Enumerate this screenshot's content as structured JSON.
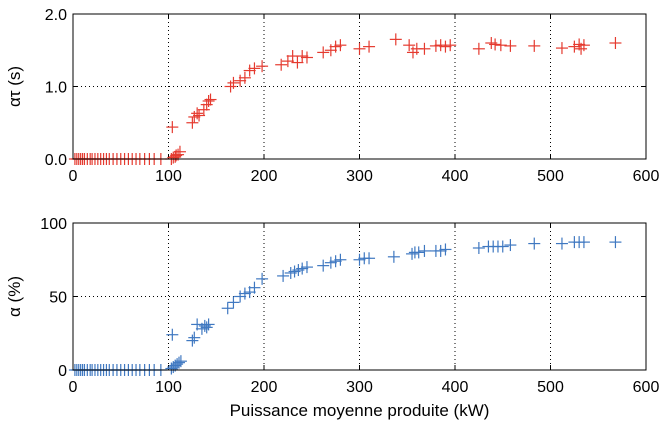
{
  "chart_data": [
    {
      "type": "scatter",
      "marker": "plus",
      "color": "#e53a2f",
      "xlabel": "",
      "ylabel": "ατ (s)",
      "xlim": [
        0,
        600
      ],
      "ylim": [
        0,
        2.0
      ],
      "xticks": [
        "0",
        "100",
        "200",
        "300",
        "400",
        "500",
        "600"
      ],
      "yticks": [
        "0.0",
        "1.0",
        "2.0"
      ],
      "grid": "dotted",
      "series": [
        {
          "points": [
            [
              2,
              0
            ],
            [
              4,
              0
            ],
            [
              6,
              0
            ],
            [
              8,
              0
            ],
            [
              10,
              0
            ],
            [
              12,
              0
            ],
            [
              15,
              0
            ],
            [
              18,
              0
            ],
            [
              20,
              0
            ],
            [
              23,
              0
            ],
            [
              26,
              0
            ],
            [
              29,
              0
            ],
            [
              32,
              0
            ],
            [
              35,
              0
            ],
            [
              38,
              0
            ],
            [
              42,
              0
            ],
            [
              46,
              0
            ],
            [
              50,
              0
            ],
            [
              54,
              0
            ],
            [
              58,
              0
            ],
            [
              62,
              0
            ],
            [
              66,
              0
            ],
            [
              70,
              0
            ],
            [
              75,
              0
            ],
            [
              80,
              0
            ],
            [
              85,
              0
            ],
            [
              92,
              0
            ],
            [
              103,
              0
            ],
            [
              105,
              0.02
            ],
            [
              107,
              0.03
            ],
            [
              108,
              0.05
            ],
            [
              110,
              0.06
            ],
            [
              112,
              0.1
            ],
            [
              104,
              0.44
            ],
            [
              125,
              0.5
            ],
            [
              127,
              0.58
            ],
            [
              130,
              0.63
            ],
            [
              132,
              0.6
            ],
            [
              137,
              0.68
            ],
            [
              140,
              0.75
            ],
            [
              142,
              0.8
            ],
            [
              144,
              0.82
            ],
            [
              165,
              1.0
            ],
            [
              168,
              1.05
            ],
            [
              175,
              1.08
            ],
            [
              180,
              1.12
            ],
            [
              185,
              1.22
            ],
            [
              190,
              1.25
            ],
            [
              198,
              1.28
            ],
            [
              218,
              1.3
            ],
            [
              225,
              1.35
            ],
            [
              230,
              1.42
            ],
            [
              235,
              1.33
            ],
            [
              240,
              1.42
            ],
            [
              245,
              1.4
            ],
            [
              262,
              1.47
            ],
            [
              270,
              1.5
            ],
            [
              275,
              1.55
            ],
            [
              280,
              1.57
            ],
            [
              300,
              1.52
            ],
            [
              310,
              1.55
            ],
            [
              338,
              1.65
            ],
            [
              352,
              1.57
            ],
            [
              356,
              1.47
            ],
            [
              360,
              1.52
            ],
            [
              368,
              1.52
            ],
            [
              380,
              1.56
            ],
            [
              385,
              1.57
            ],
            [
              390,
              1.55
            ],
            [
              395,
              1.57
            ],
            [
              425,
              1.52
            ],
            [
              438,
              1.6
            ],
            [
              442,
              1.58
            ],
            [
              448,
              1.57
            ],
            [
              458,
              1.56
            ],
            [
              483,
              1.56
            ],
            [
              512,
              1.53
            ],
            [
              525,
              1.55
            ],
            [
              530,
              1.58
            ],
            [
              532,
              1.52
            ],
            [
              535,
              1.57
            ],
            [
              568,
              1.6
            ]
          ]
        }
      ]
    },
    {
      "type": "scatter",
      "marker": "plus",
      "color": "#3f78c1",
      "xlabel": "Puissance moyenne produite (kW)",
      "ylabel": "α (%)",
      "xlim": [
        0,
        600
      ],
      "ylim": [
        0,
        100
      ],
      "xticks": [
        "0",
        "100",
        "200",
        "300",
        "400",
        "500",
        "600"
      ],
      "yticks": [
        "0",
        "50",
        "100"
      ],
      "grid": "dotted",
      "series": [
        {
          "points": [
            [
              2,
              0
            ],
            [
              4,
              0
            ],
            [
              6,
              0
            ],
            [
              8,
              0
            ],
            [
              10,
              0
            ],
            [
              12,
              0
            ],
            [
              15,
              0
            ],
            [
              18,
              0
            ],
            [
              20,
              0
            ],
            [
              23,
              0
            ],
            [
              26,
              0
            ],
            [
              29,
              0
            ],
            [
              32,
              0
            ],
            [
              35,
              0
            ],
            [
              38,
              0
            ],
            [
              42,
              0
            ],
            [
              46,
              0
            ],
            [
              50,
              0
            ],
            [
              54,
              0
            ],
            [
              58,
              0
            ],
            [
              62,
              0
            ],
            [
              66,
              0
            ],
            [
              70,
              0
            ],
            [
              75,
              0
            ],
            [
              80,
              0
            ],
            [
              85,
              0
            ],
            [
              92,
              0
            ],
            [
              103,
              1
            ],
            [
              105,
              2
            ],
            [
              107,
              3
            ],
            [
              109,
              4
            ],
            [
              111,
              5
            ],
            [
              113,
              6
            ],
            [
              104,
              24
            ],
            [
              125,
              20
            ],
            [
              127,
              22
            ],
            [
              130,
              31
            ],
            [
              135,
              28
            ],
            [
              138,
              30
            ],
            [
              140,
              29
            ],
            [
              142,
              31
            ],
            [
              162,
              42
            ],
            [
              168,
              46
            ],
            [
              175,
              50
            ],
            [
              180,
              52
            ],
            [
              185,
              53
            ],
            [
              190,
              56
            ],
            [
              198,
              62
            ],
            [
              220,
              64
            ],
            [
              228,
              66
            ],
            [
              232,
              67
            ],
            [
              236,
              68
            ],
            [
              240,
              69
            ],
            [
              245,
              70
            ],
            [
              262,
              71
            ],
            [
              270,
              73
            ],
            [
              275,
              74
            ],
            [
              280,
              75
            ],
            [
              300,
              75
            ],
            [
              305,
              76
            ],
            [
              310,
              76
            ],
            [
              336,
              77
            ],
            [
              355,
              79
            ],
            [
              358,
              80
            ],
            [
              362,
              80
            ],
            [
              368,
              81
            ],
            [
              380,
              81
            ],
            [
              385,
              81
            ],
            [
              390,
              82
            ],
            [
              425,
              83
            ],
            [
              435,
              84
            ],
            [
              440,
              84
            ],
            [
              445,
              84
            ],
            [
              450,
              84
            ],
            [
              458,
              85
            ],
            [
              483,
              86
            ],
            [
              512,
              86
            ],
            [
              525,
              87
            ],
            [
              530,
              87
            ],
            [
              535,
              87
            ],
            [
              568,
              87
            ]
          ]
        }
      ]
    }
  ]
}
